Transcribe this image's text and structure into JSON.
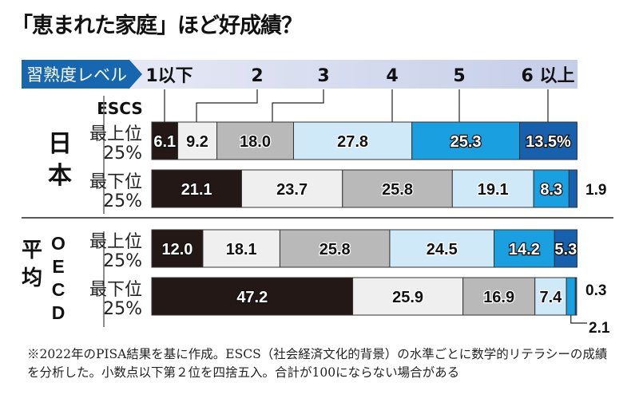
{
  "title": "「恵まれた家庭」ほど好成績？",
  "note": "※2022年のPISA結果を基に作成。ESCS（社会経済文化的背景）の水準ごとに数学的リテラシーの成績を分析した。小数点以下第２位を四捨五入。合計が100にならない場合がある",
  "chart_data": {
    "type": "bar",
    "orientation": "horizontal",
    "stacked": true,
    "unit": "%",
    "legend_title": "習熟度レベル",
    "categories": [
      "1以下",
      "2",
      "3",
      "4",
      "5",
      "6 以上"
    ],
    "colors": [
      "#231815",
      "#efefef",
      "#b9b9b9",
      "#cfe9f9",
      "#1a9fe0",
      "#1660ad"
    ],
    "row_header": "ESCS",
    "groups": [
      {
        "name": "日本",
        "rows": [
          {
            "label1": "最上位",
            "label2": "25%",
            "values": [
              6.1,
              9.2,
              18.0,
              27.8,
              25.3,
              13.5
            ],
            "display": [
              "6.1",
              "9.2",
              "18.0",
              "27.8",
              "25.3",
              "13.5%"
            ]
          },
          {
            "label1": "最下位",
            "label2": "25%",
            "values": [
              21.1,
              23.7,
              25.8,
              19.1,
              8.3,
              1.9
            ],
            "display": [
              "21.1",
              "23.7",
              "25.8",
              "19.1",
              "8.3",
              "1.9"
            ]
          }
        ]
      },
      {
        "name": "OECD平均",
        "name_a": "平均",
        "name_b": "OECD",
        "rows": [
          {
            "label1": "最上位",
            "label2": "25%",
            "values": [
              12.0,
              18.1,
              25.8,
              24.5,
              14.2,
              5.3
            ],
            "display": [
              "12.0",
              "18.1",
              "25.8",
              "24.5",
              "14.2",
              "5.3"
            ]
          },
          {
            "label1": "最下位",
            "label2": "25%",
            "values": [
              47.2,
              25.9,
              16.9,
              7.4,
              2.1,
              0.3
            ],
            "display": [
              "47.2",
              "25.9",
              "16.9",
              "7.4",
              "2.1",
              "0.3"
            ]
          }
        ]
      }
    ]
  }
}
